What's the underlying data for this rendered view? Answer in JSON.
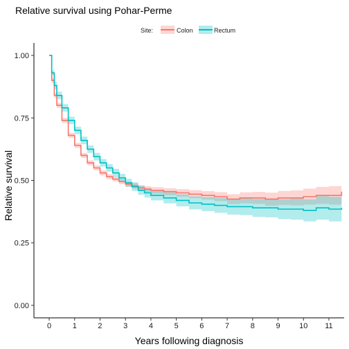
{
  "chart_data": {
    "type": "line",
    "title": "Relative survival using Pohar-Perme",
    "xlabel": "Years following diagnosis",
    "ylabel": "Relative survival",
    "xlim": [
      -0.6,
      11.6
    ],
    "ylim": [
      -0.05,
      1.05
    ],
    "x_ticks": [
      "0",
      "1",
      "2",
      "3",
      "4",
      "5",
      "6",
      "7",
      "8",
      "9",
      "10",
      "11"
    ],
    "y_ticks": [
      "0.00",
      "0.25",
      "0.50",
      "0.75",
      "1.00"
    ],
    "grid": false,
    "legend": {
      "title": "Site:",
      "position": "top-center",
      "entries": [
        "Colon",
        "Rectum"
      ]
    },
    "series": [
      {
        "name": "Colon",
        "color": "#F8766D",
        "fill": "#F8766D",
        "x": [
          0,
          0.1,
          0.2,
          0.3,
          0.5,
          0.75,
          1,
          1.25,
          1.5,
          1.75,
          2,
          2.25,
          2.5,
          2.75,
          3,
          3.25,
          3.5,
          3.75,
          4,
          4.5,
          5,
          5.5,
          6,
          6.5,
          7,
          7.5,
          8,
          8.5,
          9,
          9.5,
          10,
          10.5,
          11,
          11.5
        ],
        "y": [
          1.0,
          0.9,
          0.84,
          0.8,
          0.74,
          0.68,
          0.64,
          0.6,
          0.57,
          0.55,
          0.53,
          0.515,
          0.505,
          0.495,
          0.485,
          0.478,
          0.47,
          0.465,
          0.46,
          0.455,
          0.45,
          0.445,
          0.44,
          0.435,
          0.425,
          0.43,
          0.43,
          0.425,
          0.43,
          0.43,
          0.435,
          0.44,
          0.44,
          0.455
        ],
        "lower": [
          1.0,
          0.89,
          0.83,
          0.79,
          0.73,
          0.67,
          0.63,
          0.59,
          0.56,
          0.54,
          0.52,
          0.505,
          0.495,
          0.485,
          0.475,
          0.467,
          0.459,
          0.453,
          0.447,
          0.441,
          0.435,
          0.429,
          0.423,
          0.417,
          0.405,
          0.408,
          0.406,
          0.399,
          0.402,
          0.4,
          0.403,
          0.406,
          0.403,
          0.41
        ],
        "upper": [
          1.0,
          0.91,
          0.85,
          0.81,
          0.75,
          0.69,
          0.65,
          0.61,
          0.58,
          0.56,
          0.54,
          0.525,
          0.515,
          0.505,
          0.495,
          0.489,
          0.481,
          0.477,
          0.473,
          0.469,
          0.465,
          0.461,
          0.457,
          0.453,
          0.445,
          0.452,
          0.454,
          0.451,
          0.458,
          0.46,
          0.467,
          0.474,
          0.477,
          0.5
        ]
      },
      {
        "name": "Rectum",
        "color": "#00BFC4",
        "fill": "#00BFC4",
        "x": [
          0,
          0.1,
          0.2,
          0.3,
          0.5,
          0.75,
          1,
          1.25,
          1.5,
          1.75,
          2,
          2.25,
          2.5,
          2.75,
          3,
          3.25,
          3.5,
          3.75,
          4,
          4.5,
          5,
          5.5,
          6,
          6.5,
          7,
          7.5,
          8,
          8.5,
          9,
          9.5,
          10,
          10.5,
          11,
          11.5
        ],
        "y": [
          1.0,
          0.93,
          0.88,
          0.84,
          0.79,
          0.74,
          0.7,
          0.66,
          0.625,
          0.595,
          0.57,
          0.55,
          0.53,
          0.51,
          0.49,
          0.475,
          0.46,
          0.45,
          0.44,
          0.43,
          0.42,
          0.41,
          0.405,
          0.4,
          0.395,
          0.395,
          0.39,
          0.39,
          0.385,
          0.385,
          0.38,
          0.39,
          0.385,
          0.39
        ],
        "lower": [
          1.0,
          0.92,
          0.865,
          0.825,
          0.775,
          0.725,
          0.685,
          0.645,
          0.61,
          0.58,
          0.555,
          0.535,
          0.514,
          0.494,
          0.474,
          0.458,
          0.442,
          0.431,
          0.42,
          0.408,
          0.396,
          0.384,
          0.377,
          0.37,
          0.363,
          0.361,
          0.354,
          0.352,
          0.345,
          0.343,
          0.336,
          0.343,
          0.336,
          0.338
        ],
        "upper": [
          1.0,
          0.94,
          0.895,
          0.855,
          0.805,
          0.755,
          0.715,
          0.675,
          0.64,
          0.61,
          0.585,
          0.565,
          0.546,
          0.526,
          0.506,
          0.492,
          0.478,
          0.469,
          0.46,
          0.452,
          0.444,
          0.436,
          0.433,
          0.43,
          0.427,
          0.429,
          0.426,
          0.428,
          0.425,
          0.427,
          0.424,
          0.437,
          0.434,
          0.442
        ]
      }
    ]
  }
}
